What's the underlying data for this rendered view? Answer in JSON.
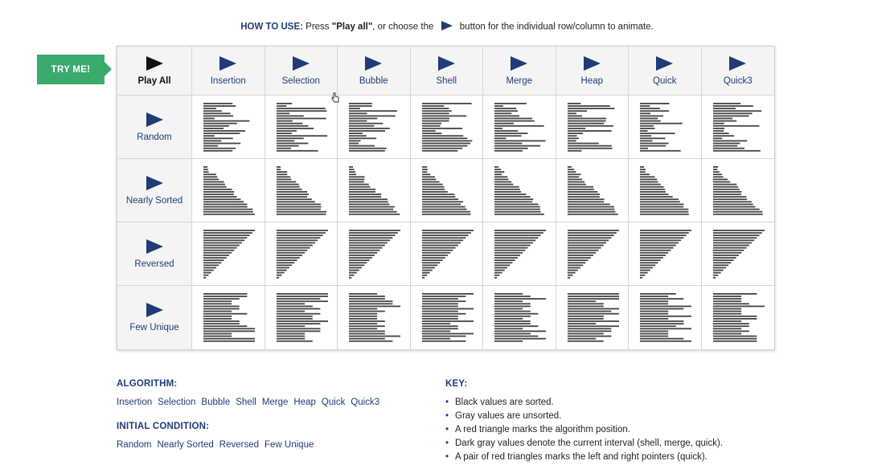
{
  "howto": {
    "label": "HOW TO USE:",
    "pre": "Press ",
    "play_all": "\"Play all\"",
    "mid": ", or choose the",
    "post": "button for the individual row/column to animate."
  },
  "tryme": "TRY ME!",
  "columns": [
    "Play All",
    "Insertion",
    "Selection",
    "Bubble",
    "Shell",
    "Merge",
    "Heap",
    "Quick",
    "Quick3"
  ],
  "rows": [
    "Random",
    "Nearly Sorted",
    "Reversed",
    "Few Unique"
  ],
  "colors": {
    "accent": "#1f3c78",
    "tryme": "#3aaa6e",
    "bars": "#444444"
  },
  "algorithm": {
    "heading": "ALGORITHM:",
    "items": [
      "Insertion",
      "Selection",
      "Bubble",
      "Shell",
      "Merge",
      "Heap",
      "Quick",
      "Quick3"
    ]
  },
  "initial": {
    "heading": "INITIAL CONDITION:",
    "items": [
      "Random",
      "Nearly Sorted",
      "Reversed",
      "Few Unique"
    ]
  },
  "key": {
    "heading": "KEY:",
    "items": [
      "Black values are sorted.",
      "Gray values are unsorted.",
      "A red triangle marks the algorithm position.",
      "Dark gray values denote the current interval (shell, merge, quick).",
      "A pair of red triangles marks the left and right pointers (quick)."
    ]
  },
  "icons": {
    "play": "play-icon",
    "cursor": "hand-cursor-icon"
  }
}
